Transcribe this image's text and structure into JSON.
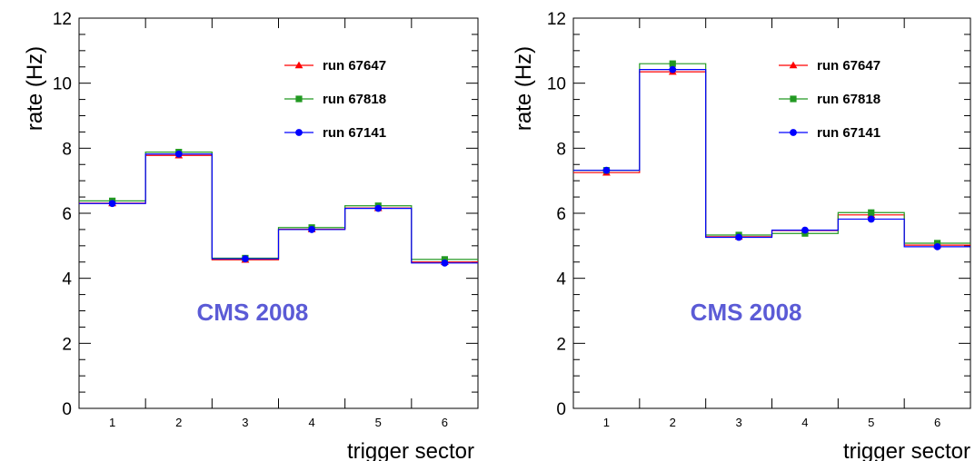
{
  "chart_data": [
    {
      "type": "line",
      "xlabel": "trigger sector",
      "ylabel": "rate (Hz)",
      "categories": [
        "1",
        "2",
        "3",
        "4",
        "5",
        "6"
      ],
      "ylim": [
        0,
        12
      ],
      "yticks": [
        "0",
        "2",
        "4",
        "6",
        "8",
        "10",
        "12"
      ],
      "grid": false,
      "legend_position": "top-right",
      "annotation": "CMS 2008",
      "annotation_color": "#5b5bd6",
      "series": [
        {
          "name": "run 67647",
          "color": "#ff0000",
          "marker": "triangle",
          "values": [
            6.31,
            7.78,
            4.57,
            5.51,
            6.16,
            4.5
          ]
        },
        {
          "name": "run 67818",
          "color": "#229922",
          "marker": "square",
          "values": [
            6.38,
            7.88,
            4.62,
            5.56,
            6.23,
            4.58
          ]
        },
        {
          "name": "run 67141",
          "color": "#0000ff",
          "marker": "circle",
          "values": [
            6.3,
            7.82,
            4.6,
            5.5,
            6.15,
            4.47
          ]
        }
      ]
    },
    {
      "type": "line",
      "xlabel": "trigger sector",
      "ylabel": "rate (Hz)",
      "categories": [
        "1",
        "2",
        "3",
        "4",
        "5",
        "6"
      ],
      "ylim": [
        0,
        12
      ],
      "yticks": [
        "0",
        "2",
        "4",
        "6",
        "8",
        "10",
        "12"
      ],
      "grid": false,
      "legend_position": "top-right",
      "annotation": "CMS 2008",
      "annotation_color": "#5b5bd6",
      "series": [
        {
          "name": "run 67647",
          "color": "#ff0000",
          "marker": "triangle",
          "values": [
            7.25,
            10.35,
            5.28,
            5.47,
            5.95,
            5.02
          ]
        },
        {
          "name": "run 67818",
          "color": "#229922",
          "marker": "square",
          "values": [
            7.32,
            10.6,
            5.33,
            5.38,
            6.02,
            5.08
          ]
        },
        {
          "name": "run 67141",
          "color": "#0000ff",
          "marker": "circle",
          "values": [
            7.32,
            10.42,
            5.26,
            5.48,
            5.82,
            4.97
          ]
        }
      ]
    }
  ]
}
